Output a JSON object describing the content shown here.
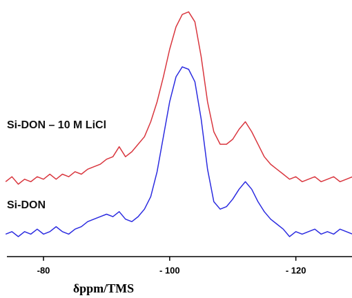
{
  "chart_data": {
    "type": "line",
    "x": [
      -74,
      -75,
      -76,
      -77,
      -78,
      -79,
      -80,
      -81,
      -82,
      -83,
      -84,
      -85,
      -86,
      -87,
      -88,
      -89,
      -90,
      -91,
      -92,
      -93,
      -94,
      -95,
      -96,
      -97,
      -98,
      -99,
      -100,
      -101,
      -102,
      -103,
      -104,
      -105,
      -106,
      -107,
      -108,
      -109,
      -110,
      -111,
      -112,
      -113,
      -114,
      -115,
      -116,
      -117,
      -118,
      -119,
      -120,
      -121,
      -122,
      -123,
      -124,
      -125,
      -126,
      -127,
      -128,
      -129
    ],
    "series": [
      {
        "name": "Si-DON – 10 M LiCl",
        "color": "#d9363e",
        "values": [
          30,
          32,
          29,
          31,
          30,
          32,
          31,
          33,
          31,
          33,
          32,
          34,
          33,
          35,
          36,
          37,
          39,
          40,
          44,
          40,
          42,
          45,
          48,
          54,
          62,
          72,
          83,
          92,
          97,
          98,
          94,
          80,
          62,
          50,
          45,
          45,
          47,
          51,
          54,
          50,
          45,
          40,
          37,
          35,
          33,
          31,
          32,
          30,
          31,
          32,
          30,
          31,
          32,
          30,
          31,
          32
        ]
      },
      {
        "name": "Si-DON",
        "color": "#2b2be0",
        "values": [
          9,
          10,
          8,
          10,
          9,
          11,
          9,
          10,
          12,
          10,
          9,
          11,
          12,
          14,
          15,
          16,
          17,
          16,
          18,
          15,
          14,
          16,
          19,
          24,
          34,
          48,
          62,
          72,
          76,
          75,
          70,
          55,
          35,
          22,
          19,
          20,
          23,
          27,
          30,
          27,
          22,
          18,
          15,
          13,
          11,
          8,
          10,
          9,
          10,
          11,
          9,
          10,
          9,
          11,
          10,
          9
        ]
      }
    ],
    "xlabel": "δppm/TMS",
    "xlim": [
      -74.2,
      -128.9
    ],
    "xticks": [
      -80,
      {
        "value": -100,
        "label": "- 100"
      },
      {
        "value": -120,
        "label": "- 120"
      }
    ],
    "ylim": [
      0,
      100
    ]
  }
}
